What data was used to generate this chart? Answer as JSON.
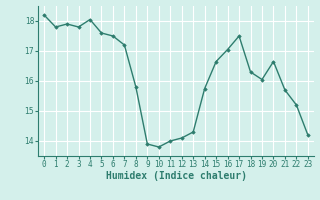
{
  "x": [
    0,
    1,
    2,
    3,
    4,
    5,
    6,
    7,
    8,
    9,
    10,
    11,
    12,
    13,
    14,
    15,
    16,
    17,
    18,
    19,
    20,
    21,
    22,
    23
  ],
  "y": [
    18.2,
    17.8,
    17.9,
    17.8,
    18.05,
    17.6,
    17.5,
    17.2,
    15.8,
    13.9,
    13.8,
    14.0,
    14.1,
    14.3,
    15.75,
    16.65,
    17.05,
    17.5,
    16.3,
    16.05,
    16.65,
    15.7,
    15.2,
    14.2
  ],
  "line_color": "#2e7d6e",
  "marker": "D",
  "marker_size": 1.8,
  "line_width": 1.0,
  "xlabel": "Humidex (Indice chaleur)",
  "ylim": [
    13.5,
    18.5
  ],
  "xlim": [
    -0.5,
    23.5
  ],
  "yticks": [
    14,
    15,
    16,
    17,
    18
  ],
  "xtick_labels": [
    "0",
    "1",
    "2",
    "3",
    "4",
    "5",
    "6",
    "7",
    "8",
    "9",
    "10",
    "11",
    "12",
    "13",
    "14",
    "15",
    "16",
    "17",
    "18",
    "19",
    "20",
    "21",
    "22",
    "23"
  ],
  "bg_color": "#d4f0eb",
  "grid_color": "#ffffff",
  "grid_color_minor": "#f0c0c0",
  "tick_font_size": 5.5,
  "xlabel_font_size": 7,
  "tick_color": "#2e7d6e",
  "spine_color": "#2e7d6e"
}
